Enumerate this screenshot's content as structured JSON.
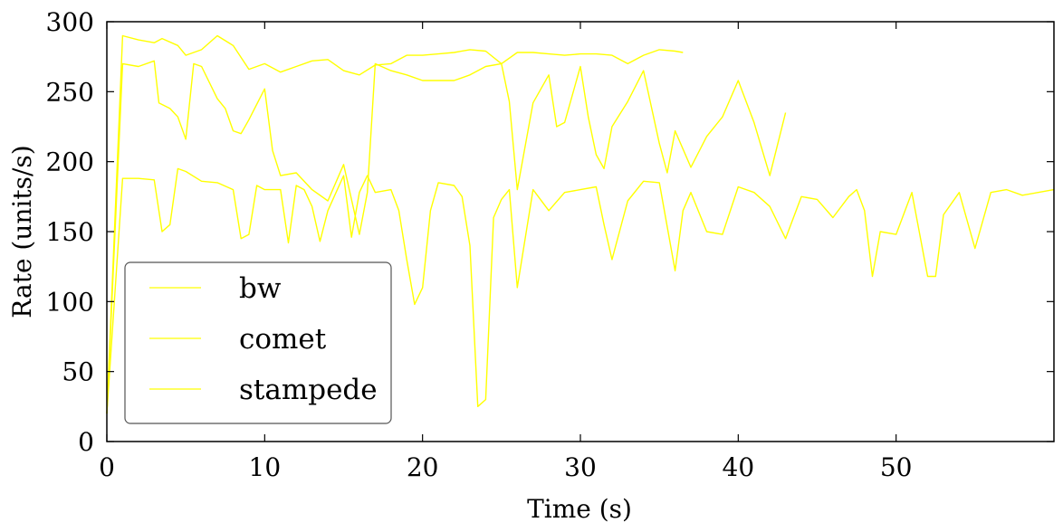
{
  "chart_data": {
    "type": "line",
    "xlabel": "Time (s)",
    "ylabel": "Rate (units/s)",
    "xlim": [
      0,
      60
    ],
    "ylim": [
      0,
      300
    ],
    "xticks": [
      0,
      10,
      20,
      30,
      40,
      50
    ],
    "yticks": [
      0,
      50,
      100,
      150,
      200,
      250,
      300
    ],
    "grid": false,
    "legend_position": "lower-left",
    "series_color": "#ffff00",
    "series": [
      {
        "name": "bw",
        "x": [
          0,
          1.0,
          2.0,
          3.0,
          3.5,
          4.5,
          5.0,
          6.0,
          7.0,
          8.0,
          9.0,
          10.0,
          11.0,
          12.0,
          13.0,
          14.0,
          15.0,
          16.0,
          17.0,
          18.0,
          19.0,
          20.0,
          21.0,
          22.0,
          23.0,
          24.0,
          25.0,
          26.0,
          27.0,
          28.0,
          29.0,
          30.0,
          31.0,
          32.0,
          33.0,
          34.0,
          35.0,
          36.0,
          36.5
        ],
        "y": [
          20,
          290,
          287,
          285,
          288,
          283,
          276,
          280,
          290,
          283,
          266,
          270,
          264,
          268,
          272,
          273,
          265,
          262,
          269,
          270,
          276,
          276,
          277,
          278,
          280,
          279,
          270,
          278,
          278,
          277,
          276,
          277,
          277,
          276,
          270,
          276,
          280,
          279,
          278
        ]
      },
      {
        "name": "comet",
        "x": [
          0,
          1.0,
          2.0,
          3.0,
          3.3,
          4.0,
          4.5,
          5.0,
          5.5,
          6.0,
          7.0,
          7.5,
          8.0,
          8.5,
          9.0,
          10.0,
          10.5,
          11.0,
          12.0,
          13.0,
          14.0,
          15.0,
          16.0,
          16.5,
          17.0,
          18.0,
          19.0,
          20.0,
          21.0,
          22.0,
          23.0,
          24.0,
          25.0,
          25.5,
          26.0,
          27.0,
          28.0,
          28.5,
          29.0,
          30.0,
          30.5,
          31.0,
          31.5,
          32.0,
          33.0,
          34.0,
          35.0,
          35.5,
          36.0,
          37.0,
          38.0,
          39.0,
          40.0,
          41.0,
          42.0,
          43.0
        ],
        "y": [
          20,
          270,
          268,
          272,
          242,
          238,
          232,
          216,
          270,
          268,
          245,
          238,
          222,
          220,
          230,
          252,
          208,
          190,
          192,
          180,
          172,
          198,
          148,
          178,
          270,
          265,
          262,
          258,
          258,
          258,
          262,
          268,
          270,
          243,
          180,
          242,
          262,
          225,
          228,
          268,
          232,
          205,
          195,
          225,
          243,
          265,
          213,
          192,
          222,
          196,
          218,
          232,
          258,
          228,
          190,
          235
        ]
      },
      {
        "name": "stampede",
        "x": [
          0,
          1.0,
          2.0,
          3.0,
          3.5,
          4.0,
          4.5,
          5.0,
          6.0,
          7.0,
          8.0,
          8.5,
          9.0,
          9.5,
          10.0,
          11.0,
          11.5,
          12.0,
          12.5,
          13.0,
          13.5,
          14.0,
          15.0,
          15.5,
          16.0,
          16.5,
          17.0,
          18.0,
          18.5,
          19.0,
          19.5,
          20.0,
          20.5,
          21.0,
          22.0,
          22.5,
          23.0,
          23.5,
          24.0,
          24.5,
          25.0,
          25.5,
          26.0,
          27.0,
          28.0,
          29.0,
          30.0,
          31.0,
          31.5,
          32.0,
          33.0,
          34.0,
          35.0,
          36.0,
          36.5,
          37.0,
          38.0,
          39.0,
          40.0,
          41.0,
          42.0,
          43.0,
          44.0,
          45.0,
          46.0,
          47.0,
          47.5,
          48.0,
          48.5,
          49.0,
          50.0,
          51.0,
          52.0,
          52.5,
          53.0,
          54.0,
          55.0,
          56.0,
          57.0,
          58.0,
          59.0,
          60.0
        ],
        "y": [
          20,
          188,
          188,
          187,
          150,
          155,
          195,
          193,
          186,
          185,
          180,
          145,
          148,
          183,
          180,
          180,
          142,
          183,
          180,
          168,
          143,
          165,
          190,
          146,
          178,
          190,
          178,
          180,
          165,
          130,
          98,
          110,
          165,
          185,
          183,
          175,
          140,
          25,
          30,
          160,
          173,
          180,
          110,
          180,
          165,
          178,
          180,
          182,
          155,
          130,
          172,
          186,
          185,
          122,
          165,
          178,
          150,
          148,
          182,
          178,
          168,
          145,
          175,
          173,
          160,
          175,
          180,
          165,
          118,
          150,
          148,
          178,
          118,
          118,
          162,
          178,
          138,
          178,
          180,
          176,
          178,
          180
        ]
      }
    ]
  }
}
